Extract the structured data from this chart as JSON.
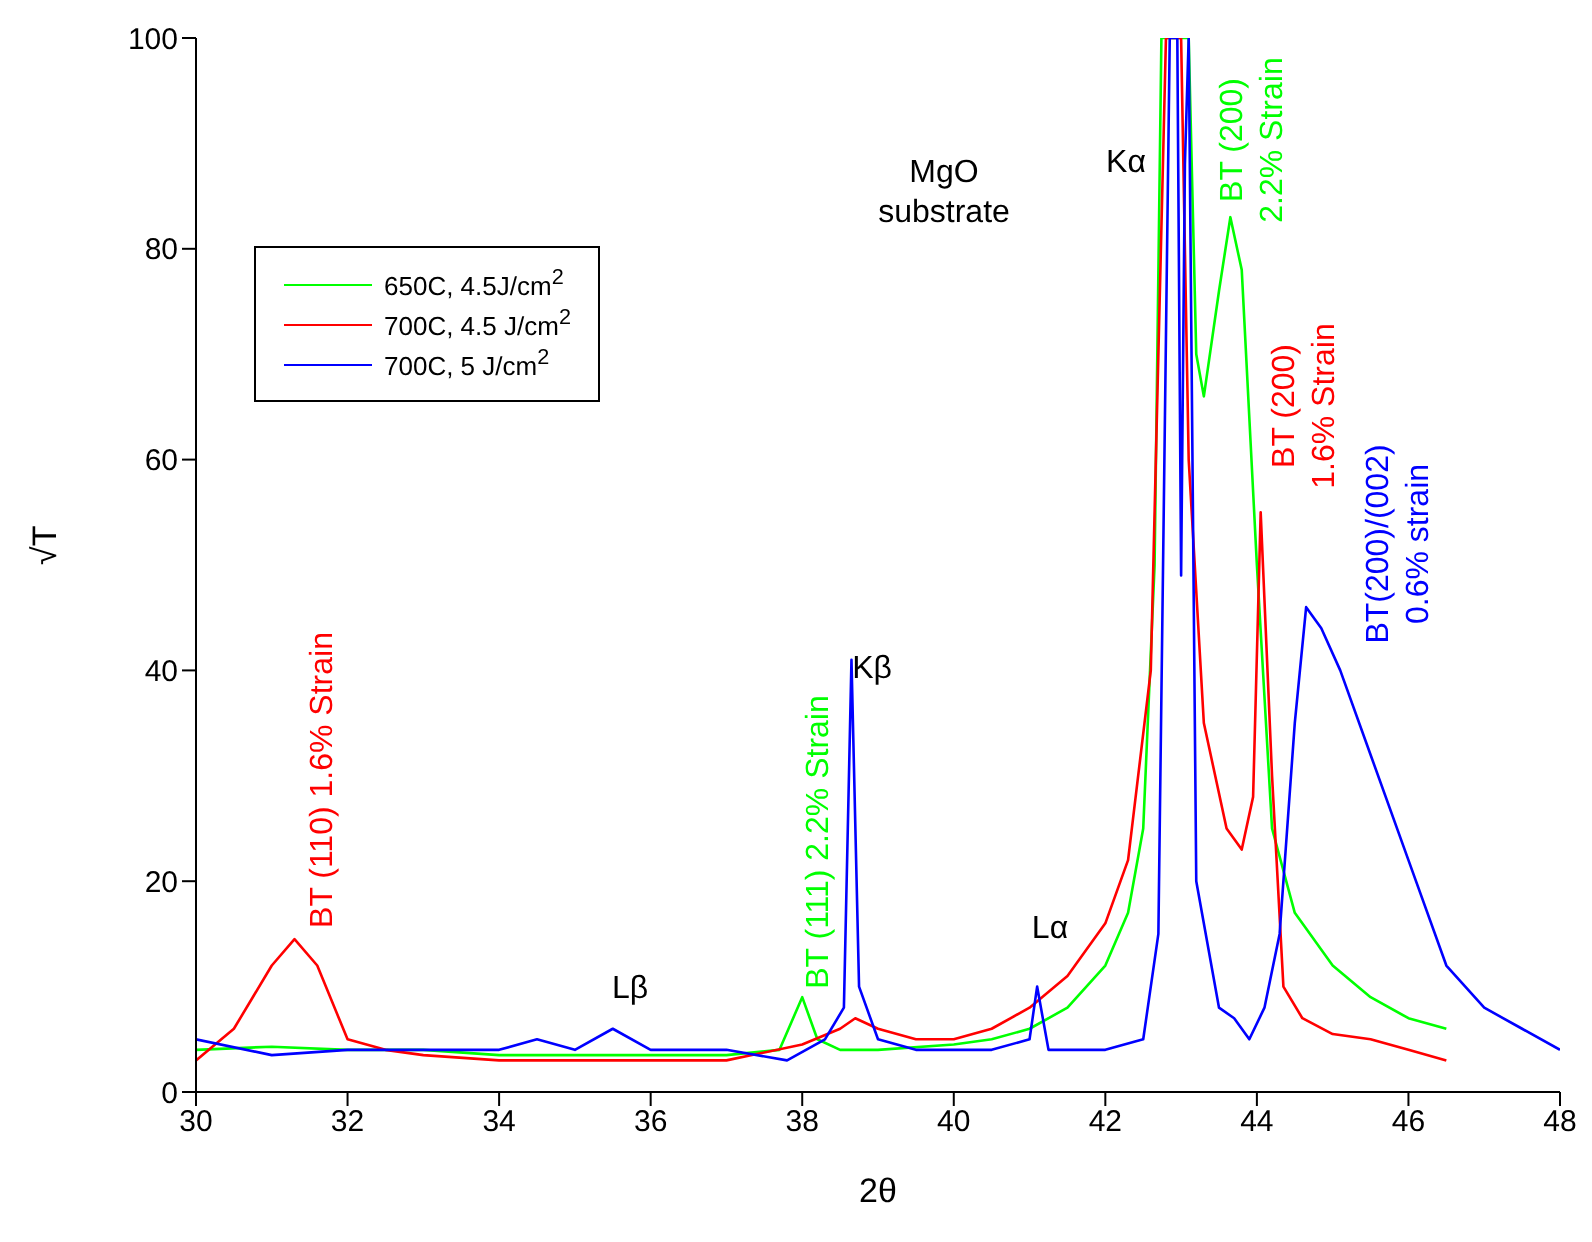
{
  "chart_data": {
    "type": "line",
    "xlabel": "2θ",
    "ylabel": "√T",
    "xlim": [
      30,
      48
    ],
    "xticks": [
      30,
      32,
      34,
      36,
      38,
      40,
      42,
      44,
      46,
      48
    ],
    "ylim": [
      0,
      100
    ],
    "yticks": [
      0,
      20,
      40,
      60,
      80,
      100
    ],
    "grid": false,
    "legend": "top left",
    "marker": "none",
    "line_style": "solid",
    "series": [
      {
        "name": "650C, 4.5J/cm$^{2}$",
        "color": "#00ff00",
        "x": [
          30,
          31,
          32,
          33,
          34,
          35,
          36,
          37,
          37.7,
          38.0,
          38.2,
          38.5,
          39,
          40,
          40.5,
          41,
          41.5,
          42,
          42.3,
          42.5,
          42.65,
          42.74,
          43.1,
          43.2,
          43.3,
          43.5,
          43.65,
          43.8,
          44,
          44.2,
          44.5,
          45,
          45.5,
          46,
          46.5
        ],
        "values": [
          4,
          4.3,
          4,
          4,
          3.5,
          3.5,
          3.5,
          3.5,
          4,
          9,
          5,
          4,
          4,
          4.5,
          5,
          6,
          8,
          12,
          17,
          25,
          50,
          100,
          100,
          70,
          66,
          76,
          83,
          78,
          50,
          25,
          17,
          12,
          9,
          7,
          6
        ]
      },
      {
        "name": "700C, 4.5 J/cm$^{2}$",
        "color": "#ff0000",
        "x": [
          30,
          30.5,
          31,
          31.3,
          31.6,
          32,
          32.5,
          33,
          34,
          35,
          36,
          37,
          38,
          38.5,
          38.7,
          39,
          39.5,
          40,
          40.5,
          41,
          41.5,
          42,
          42.3,
          42.6,
          42.8,
          43.0,
          43.1,
          43.3,
          43.6,
          43.8,
          43.95,
          44.05,
          44.2,
          44.35,
          44.6,
          45,
          45.5,
          46,
          46.5
        ],
        "values": [
          3,
          6,
          12,
          14.5,
          12,
          5,
          4,
          3.5,
          3,
          3,
          3,
          3,
          4.5,
          6,
          7,
          6,
          5,
          5,
          6,
          8,
          11,
          16,
          22,
          40,
          100,
          100,
          60,
          35,
          25,
          23,
          28,
          55,
          30,
          10,
          7,
          5.5,
          5,
          4,
          3
        ]
      },
      {
        "name": "700C, 5 J/cm$^{2}$",
        "color": "#0000ff",
        "x": [
          30,
          31,
          32,
          33,
          34,
          34.5,
          35,
          35.5,
          36,
          37,
          37.8,
          38.3,
          38.55,
          38.65,
          38.75,
          39,
          39.5,
          40,
          40.5,
          41,
          41.1,
          41.25,
          42,
          42.5,
          42.7,
          42.85,
          42.95,
          43.0,
          43.05,
          43.1,
          43.2,
          43.5,
          43.7,
          43.9,
          44.1,
          44.3,
          44.5,
          44.65,
          44.85,
          45.1,
          45.5,
          46,
          46.5,
          47,
          47.5,
          48
        ],
        "values": [
          5,
          3.5,
          4,
          4,
          4,
          5,
          4,
          6,
          4,
          4,
          3,
          5,
          8,
          41,
          10,
          5,
          4,
          4,
          4,
          5,
          10,
          4,
          4,
          5,
          15,
          100,
          100,
          49,
          88,
          100,
          20,
          8,
          7,
          5,
          8,
          15,
          35,
          46,
          44,
          40,
          32,
          22,
          12,
          8,
          6,
          4
        ]
      }
    ],
    "annotations": [
      "MgO\nsubstrate",
      "Kα",
      "Kβ",
      "Lα",
      "Lβ",
      "BT (110) 1.6% Strain",
      "BT (111) 2.2% Strain",
      "BT (200)\n2.2% Strain",
      "BT (200)\n1.6% Strain",
      "BT(200)/(002)\n0.6% strain"
    ]
  }
}
